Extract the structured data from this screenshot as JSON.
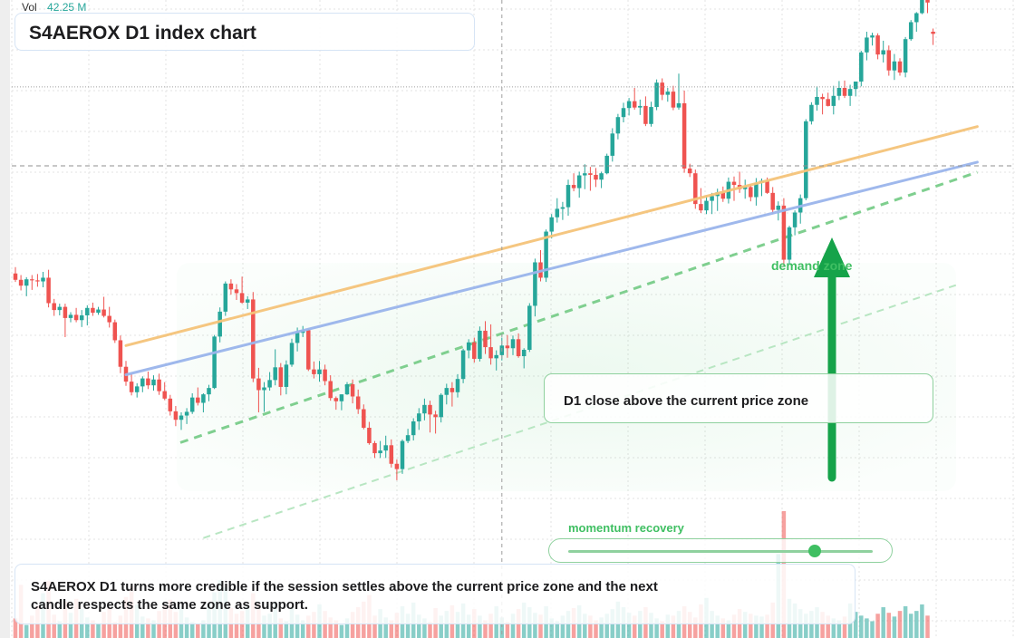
{
  "header": {
    "vol_label": "Vol",
    "vol_value": "42.25 M",
    "title": "S4AEROX D1 index chart"
  },
  "annotations": {
    "zone_label": "demand zone",
    "callout": "D1 close above the current price zone",
    "momentum_label": "momentum recovery",
    "momentum_level": 0.81,
    "note": "S4AEROX D1 turns more credible if the session settles above the current price zone and the next candle respects the same zone as support."
  },
  "colors": {
    "up": "#26a69a",
    "down": "#ef5350",
    "accent": "#3fbf62",
    "trend_orange": "#f5c47a",
    "trend_blue": "#9ab5ec",
    "grid": "#e3e3e3"
  },
  "chart_data": {
    "type": "candlestick",
    "title": "S4AEROX D1 index chart",
    "price_range": [
      0,
      100
    ],
    "candles": [
      [
        54.4,
        55.6,
        52.8,
        53.2
      ],
      [
        53.2,
        54.1,
        51.2,
        52.1
      ],
      [
        52.1,
        53.7,
        50.1,
        53.3
      ],
      [
        53.3,
        54.1,
        51.3,
        53.1
      ],
      [
        53.1,
        54.3,
        51.9,
        52.9
      ],
      [
        52.9,
        54.7,
        51.8,
        53.6
      ],
      [
        53.6,
        55.1,
        48.0,
        48.8
      ],
      [
        48.8,
        49.6,
        46.4,
        47.5
      ],
      [
        47.5,
        48.7,
        46.5,
        48.1
      ],
      [
        48.1,
        48.7,
        42.4,
        46.0
      ],
      [
        46.0,
        47.1,
        45.2,
        46.6
      ],
      [
        46.6,
        47.9,
        45.2,
        45.6
      ],
      [
        45.6,
        47.5,
        44.3,
        46.5
      ],
      [
        46.5,
        48.4,
        44.6,
        47.9
      ],
      [
        47.9,
        48.9,
        46.4,
        47.0
      ],
      [
        47.0,
        48.1,
        46.6,
        47.6
      ],
      [
        47.6,
        50.0,
        46.1,
        46.4
      ],
      [
        46.4,
        48.1,
        44.2,
        45.2
      ],
      [
        45.2,
        45.7,
        41.3,
        41.8
      ],
      [
        41.8,
        42.7,
        35.6,
        36.8
      ],
      [
        36.8,
        37.9,
        33.2,
        34.0
      ],
      [
        34.0,
        35.5,
        31.4,
        32.0
      ],
      [
        32.0,
        33.7,
        31.0,
        33.1
      ],
      [
        33.1,
        35.0,
        32.0,
        34.6
      ],
      [
        34.6,
        35.9,
        32.6,
        33.3
      ],
      [
        33.3,
        35.2,
        32.3,
        34.4
      ],
      [
        34.4,
        35.5,
        31.5,
        32.2
      ],
      [
        32.2,
        33.9,
        30.5,
        30.8
      ],
      [
        30.8,
        31.5,
        27.6,
        28.4
      ],
      [
        28.4,
        29.4,
        25.6,
        26.8
      ],
      [
        26.8,
        28.2,
        24.9,
        27.6
      ],
      [
        27.6,
        29.0,
        26.0,
        28.3
      ],
      [
        28.3,
        31.8,
        27.9,
        31.0
      ],
      [
        31.0,
        32.9,
        29.5,
        30.0
      ],
      [
        30.0,
        31.8,
        28.2,
        31.6
      ],
      [
        31.6,
        33.4,
        30.3,
        32.8
      ],
      [
        32.8,
        42.8,
        32.6,
        42.5
      ],
      [
        42.5,
        48.0,
        41.4,
        47.2
      ],
      [
        47.2,
        52.9,
        46.4,
        52.5
      ],
      [
        52.5,
        53.3,
        50.4,
        51.4
      ],
      [
        51.4,
        52.4,
        49.4,
        50.7
      ],
      [
        50.7,
        53.8,
        48.7,
        48.9
      ],
      [
        48.9,
        50.1,
        47.7,
        49.5
      ],
      [
        49.5,
        50.9,
        33.9,
        34.6
      ],
      [
        34.6,
        36.6,
        28.2,
        32.4
      ],
      [
        32.4,
        33.9,
        28.3,
        32.9
      ],
      [
        32.9,
        35.8,
        32.3,
        34.3
      ],
      [
        34.3,
        40.1,
        33.3,
        36.7
      ],
      [
        36.7,
        37.5,
        31.4,
        33.0
      ],
      [
        33.0,
        38.0,
        31.6,
        37.2
      ],
      [
        37.2,
        42.1,
        36.8,
        41.3
      ],
      [
        41.3,
        44.2,
        39.7,
        43.2
      ],
      [
        43.2,
        44.5,
        42.4,
        43.7
      ],
      [
        43.7,
        43.9,
        36.0,
        36.3
      ],
      [
        36.3,
        37.8,
        34.6,
        35.4
      ],
      [
        35.4,
        37.9,
        34.0,
        36.3
      ],
      [
        36.3,
        37.2,
        33.3,
        34.1
      ],
      [
        34.1,
        35.2,
        30.4,
        30.9
      ],
      [
        30.9,
        31.2,
        28.7,
        30.3
      ],
      [
        30.3,
        31.6,
        28.6,
        31.6
      ],
      [
        31.6,
        33.9,
        31.5,
        33.5
      ],
      [
        33.5,
        34.4,
        29.9,
        31.2
      ],
      [
        31.2,
        32.5,
        27.9,
        28.8
      ],
      [
        28.8,
        29.7,
        25.0,
        25.3
      ],
      [
        25.3,
        26.4,
        22.1,
        22.4
      ],
      [
        22.4,
        22.8,
        19.6,
        20.5
      ],
      [
        20.5,
        22.8,
        19.6,
        21.0
      ],
      [
        21.0,
        23.8,
        19.6,
        22.0
      ],
      [
        22.0,
        23.1,
        17.8,
        18.5
      ],
      [
        18.5,
        19.3,
        15.4,
        17.5
      ],
      [
        17.5,
        23.1,
        16.6,
        22.8
      ],
      [
        22.8,
        25.1,
        22.4,
        23.9
      ],
      [
        23.9,
        27.1,
        22.9,
        26.5
      ],
      [
        26.5,
        29.0,
        24.9,
        28.0
      ],
      [
        28.0,
        30.8,
        26.7,
        29.6
      ],
      [
        29.6,
        30.4,
        24.4,
        27.8
      ],
      [
        27.8,
        28.5,
        24.2,
        27.3
      ],
      [
        27.3,
        31.8,
        26.3,
        31.5
      ],
      [
        31.5,
        33.6,
        29.7,
        32.8
      ],
      [
        32.8,
        33.9,
        29.3,
        32.0
      ],
      [
        32.0,
        35.4,
        31.0,
        34.5
      ],
      [
        34.5,
        40.2,
        33.7,
        39.9
      ],
      [
        39.9,
        42.0,
        38.4,
        41.4
      ],
      [
        41.4,
        42.3,
        37.6,
        38.3
      ],
      [
        38.3,
        44.4,
        37.8,
        43.6
      ],
      [
        43.6,
        45.4,
        39.2,
        40.5
      ],
      [
        40.5,
        44.8,
        37.2,
        38.4
      ],
      [
        38.4,
        39.9,
        36.1,
        39.0
      ],
      [
        39.0,
        42.3,
        38.0,
        40.8
      ],
      [
        40.8,
        42.8,
        38.5,
        40.3
      ],
      [
        40.3,
        42.7,
        39.0,
        42.0
      ],
      [
        42.0,
        43.1,
        38.5,
        38.8
      ],
      [
        38.8,
        40.3,
        36.5,
        40.0
      ],
      [
        40.0,
        48.8,
        39.6,
        48.3
      ],
      [
        48.3,
        57.2,
        46.3,
        56.5
      ],
      [
        56.5,
        58.8,
        52.9,
        53.6
      ],
      [
        53.6,
        62.7,
        52.8,
        62.3
      ],
      [
        62.3,
        65.6,
        61.0,
        65.0
      ],
      [
        65.0,
        68.6,
        64.0,
        66.6
      ],
      [
        66.6,
        67.9,
        64.5,
        66.9
      ],
      [
        66.9,
        72.1,
        65.3,
        71.1
      ],
      [
        71.1,
        73.3,
        69.9,
        70.5
      ],
      [
        70.5,
        73.6,
        68.7,
        72.9
      ],
      [
        72.9,
        75.0,
        70.3,
        73.3
      ],
      [
        73.3,
        74.5,
        70.0,
        73.0
      ],
      [
        73.0,
        74.3,
        70.7,
        72.1
      ],
      [
        72.1,
        73.6,
        70.5,
        73.3
      ],
      [
        73.3,
        77.0,
        73.1,
        76.6
      ],
      [
        76.6,
        81.8,
        75.5,
        80.8
      ],
      [
        80.8,
        84.5,
        79.7,
        83.9
      ],
      [
        83.9,
        86.6,
        82.9,
        85.6
      ],
      [
        85.6,
        87.5,
        84.2,
        86.9
      ],
      [
        86.9,
        89.4,
        85.3,
        85.7
      ],
      [
        85.7,
        87.2,
        84.3,
        86.0
      ],
      [
        86.0,
        87.8,
        82.2,
        82.6
      ],
      [
        82.6,
        86.8,
        82.1,
        85.8
      ],
      [
        85.8,
        91.0,
        85.2,
        90.4
      ],
      [
        90.4,
        91.2,
        87.1,
        88.1
      ],
      [
        88.1,
        89.4,
        86.8,
        88.7
      ],
      [
        88.7,
        89.8,
        85.2,
        85.7
      ],
      [
        85.7,
        92.1,
        85.3,
        86.5
      ],
      [
        86.5,
        88.9,
        73.4,
        74.2
      ],
      [
        74.2,
        75.1,
        72.6,
        73.3
      ],
      [
        73.3,
        74.0,
        66.6,
        67.5
      ],
      [
        67.5,
        70.5,
        65.8,
        66.3
      ],
      [
        66.3,
        69.1,
        65.6,
        68.1
      ],
      [
        68.1,
        69.6,
        65.6,
        69.0
      ],
      [
        69.0,
        70.4,
        66.2,
        69.7
      ],
      [
        69.7,
        70.8,
        67.9,
        68.5
      ],
      [
        68.5,
        72.5,
        67.6,
        71.7
      ],
      [
        71.7,
        72.7,
        68.1,
        71.1
      ],
      [
        71.1,
        73.6,
        69.6,
        70.3
      ],
      [
        70.3,
        72.1,
        68.5,
        70.7
      ],
      [
        70.7,
        71.2,
        68.0,
        68.8
      ],
      [
        68.8,
        72.4,
        67.2,
        71.5
      ],
      [
        71.5,
        72.3,
        69.0,
        71.9
      ],
      [
        71.9,
        72.5,
        69.4,
        69.6
      ],
      [
        69.6,
        70.7,
        65.6,
        66.4
      ],
      [
        66.4,
        68.0,
        64.4,
        67.2
      ],
      [
        67.2,
        68.6,
        55.8,
        57.0
      ],
      [
        57.0,
        63.4,
        56.1,
        63.1
      ],
      [
        63.1,
        66.3,
        61.6,
        65.9
      ],
      [
        65.9,
        69.3,
        63.8,
        68.6
      ],
      [
        68.6,
        83.5,
        68.2,
        83.1
      ],
      [
        83.1,
        86.7,
        82.5,
        86.2
      ],
      [
        86.2,
        89.7,
        85.1,
        87.7
      ],
      [
        87.7,
        88.3,
        84.4,
        87.3
      ],
      [
        87.3,
        88.5,
        85.9,
        86.0
      ],
      [
        86.0,
        89.8,
        84.4,
        87.9
      ],
      [
        87.9,
        90.7,
        87.1,
        89.4
      ],
      [
        89.4,
        90.8,
        87.5,
        87.9
      ],
      [
        87.9,
        90.0,
        86.0,
        89.2
      ],
      [
        89.2,
        90.6,
        87.8,
        90.6
      ],
      [
        90.6,
        96.4,
        89.7,
        96.1
      ],
      [
        96.1,
        100.0,
        94.6,
        98.9
      ],
      [
        98.9,
        99.8,
        97.4,
        99.3
      ],
      [
        99.3,
        99.7,
        94.8,
        95.7
      ],
      [
        95.7,
        98.3,
        94.2,
        96.5
      ],
      [
        96.5,
        97.4,
        91.7,
        92.7
      ],
      [
        92.7,
        95.8,
        90.9,
        94.4
      ],
      [
        94.4,
        95.0,
        91.7,
        92.3
      ],
      [
        92.3,
        99.0,
        91.4,
        98.6
      ],
      [
        98.6,
        102.2,
        98.3,
        101.8
      ],
      [
        101.8,
        103.7,
        100.0,
        103.5
      ],
      [
        103.5,
        107.0,
        103.3,
        106.3
      ],
      [
        106.3,
        108.0,
        103.5,
        105.5
      ],
      [
        100.0,
        100.6,
        97.5,
        99.6
      ]
    ],
    "volume": [
      2.1,
      5.7,
      1.4,
      2.4,
      3.5,
      4.8,
      6.1,
      2.5,
      1.8,
      3.9,
      2.7,
      4.2,
      3.1,
      2.2,
      1.9,
      1.6,
      2.8,
      3.3,
      1.7,
      2.4,
      4.4,
      5.6,
      3.6,
      2.3,
      2.1,
      1.9,
      2.9,
      3.5,
      4.1,
      2.8,
      3.4,
      2.2,
      1.7,
      1.5,
      1.9,
      3.7,
      4.9,
      6.2,
      5.4,
      3.2,
      2.6,
      2.9,
      3.5,
      4.8,
      3.7,
      2.4,
      2.6,
      3.9,
      2.1,
      1.8,
      3.2,
      2.5,
      1.9,
      2.4,
      2.8,
      3.6,
      2.9,
      2.2,
      1.9,
      1.4,
      2.1,
      2.8,
      3.3,
      3.9,
      4.6,
      2.4,
      3.1,
      2.2,
      1.9,
      2.7,
      3.4,
      2.6,
      3.8,
      2.5,
      2.1,
      1.7,
      3.2,
      2.4,
      2.9,
      3.5,
      2.8,
      3.7,
      2.5,
      3.1,
      2.4,
      1.9,
      2.6,
      3.4,
      2.2,
      1.7,
      2.6,
      3.1,
      3.8,
      3.3,
      2.7,
      2.5,
      3.4,
      2.1,
      1.8,
      2.4,
      2.9,
      3.2,
      3.5,
      2.6,
      2.4,
      1.9,
      2.2,
      2.6,
      3.1,
      3.9,
      3.3,
      2.7,
      2.4,
      2.9,
      3.3,
      2.7,
      2.1,
      1.8,
      2.5,
      2.4,
      2.9,
      3.4,
      2.8,
      2.2,
      3.6,
      4.3,
      2.9,
      2.4,
      2.1,
      1.9,
      2.5,
      3.1,
      2.8,
      2.6,
      2.4,
      2.3,
      2.5,
      3.8,
      9.0,
      13.6,
      4.2,
      3.7,
      3.1,
      2.6,
      2.9,
      3.3,
      2.8,
      2.4,
      2.1,
      1.9,
      2.3,
      3.7,
      2.8,
      2.4,
      2.1,
      1.8,
      2.6,
      3.3,
      2.7,
      2.3,
      2.9,
      3.4,
      2.6,
      2.9,
      3.6,
      2.4
    ],
    "trendlines": [
      {
        "start": [
          20,
          40.8
        ],
        "end": [
          174,
          82.1
        ]
      },
      {
        "start": [
          20,
          35.3
        ],
        "end": [
          174,
          75.4
        ]
      }
    ],
    "zones": [
      {
        "name": "demand zone",
        "from": 30,
        "to": 78
      }
    ],
    "crosshair": {
      "candle": 88,
      "price": 74.7
    }
  }
}
